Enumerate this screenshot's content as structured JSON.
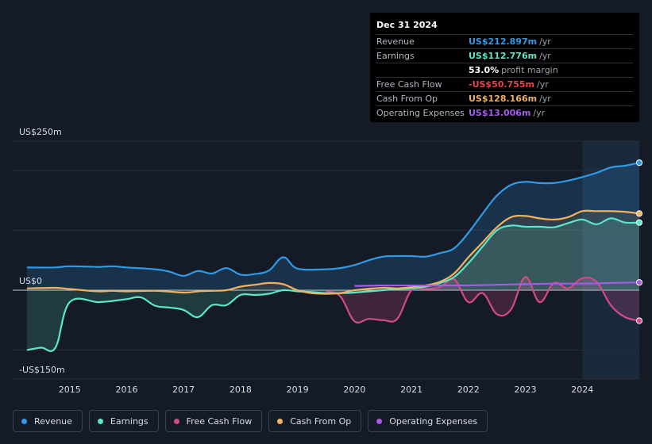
{
  "tooltip": {
    "date": "Dec 31 2024",
    "rows": [
      {
        "label": "Revenue",
        "value": "US$212.897m",
        "unit": "/yr",
        "color": "#2f9ae8"
      },
      {
        "label": "Earnings",
        "value": "US$112.776m",
        "unit": "/yr",
        "color": "#5ce6c8"
      },
      {
        "label": "",
        "value": "53.0%",
        "unit": "profit margin",
        "color": "#ffffff"
      },
      {
        "label": "Free Cash Flow",
        "value": "-US$50.755m",
        "unit": "/yr",
        "color": "#e8434b"
      },
      {
        "label": "Cash From Op",
        "value": "US$128.166m",
        "unit": "/yr",
        "color": "#f0b25f"
      },
      {
        "label": "Operating Expenses",
        "value": "US$13.006m",
        "unit": "/yr",
        "color": "#a35ce8"
      }
    ]
  },
  "legend": [
    {
      "label": "Revenue",
      "color": "#2f9ae8"
    },
    {
      "label": "Earnings",
      "color": "#5ce6c8"
    },
    {
      "label": "Free Cash Flow",
      "color": "#d14a8a"
    },
    {
      "label": "Cash From Op",
      "color": "#f0b25f"
    },
    {
      "label": "Operating Expenses",
      "color": "#a35ce8"
    }
  ],
  "chart_data": {
    "type": "line",
    "ylim": [
      -150,
      250
    ],
    "y_tick_labels": [
      "US$250m",
      "US$0",
      "-US$150m"
    ],
    "x_tick_labels": [
      "2015",
      "2016",
      "2017",
      "2018",
      "2019",
      "2020",
      "2021",
      "2022",
      "2023",
      "2024"
    ],
    "highlight_start": 2024.0,
    "series": [
      {
        "name": "Revenue",
        "color": "#2f9ae8",
        "x": [
          2014.25,
          2014.75,
          2015.0,
          2015.5,
          2015.75,
          2016.0,
          2016.5,
          2016.75,
          2017.0,
          2017.25,
          2017.5,
          2017.75,
          2018.0,
          2018.25,
          2018.5,
          2018.75,
          2019.0,
          2019.5,
          2019.75,
          2020.0,
          2020.25,
          2020.5,
          2020.75,
          2021.0,
          2021.25,
          2021.5,
          2021.75,
          2022.0,
          2022.25,
          2022.5,
          2022.75,
          2023.0,
          2023.25,
          2023.5,
          2023.75,
          2024.0,
          2024.25,
          2024.5,
          2024.75,
          2025.0
        ],
        "y": [
          38,
          38,
          40,
          39,
          40,
          38,
          35,
          31,
          24,
          32,
          28,
          37,
          26,
          27,
          33,
          55,
          36,
          35,
          37,
          42,
          50,
          56,
          57,
          57,
          56,
          62,
          70,
          96,
          128,
          158,
          176,
          181,
          179,
          179,
          183,
          189,
          196,
          205,
          208,
          213
        ]
      },
      {
        "name": "Earnings",
        "color": "#5ce6c8",
        "x": [
          2014.25,
          2014.5,
          2014.75,
          2015.0,
          2015.5,
          2015.75,
          2016.0,
          2016.25,
          2016.5,
          2016.75,
          2017.0,
          2017.25,
          2017.5,
          2017.75,
          2018.0,
          2018.25,
          2018.5,
          2018.75,
          2019.0,
          2019.25,
          2019.5,
          2019.75,
          2020.0,
          2020.5,
          2020.75,
          2021.0,
          2021.25,
          2021.5,
          2021.75,
          2022.0,
          2022.25,
          2022.5,
          2022.75,
          2023.0,
          2023.25,
          2023.5,
          2023.75,
          2024.0,
          2024.25,
          2024.5,
          2024.75,
          2025.0
        ],
        "y": [
          -100,
          -96,
          -96,
          -20,
          -20,
          -18,
          -15,
          -12,
          -26,
          -29,
          -33,
          -45,
          -25,
          -25,
          -8,
          -8,
          -6,
          0,
          -2,
          -3,
          -5,
          -5,
          -4,
          0,
          2,
          3,
          6,
          12,
          22,
          45,
          73,
          100,
          108,
          106,
          106,
          105,
          112,
          118,
          110,
          120,
          113,
          113
        ]
      },
      {
        "name": "Free Cash Flow",
        "color": "#d14a8a",
        "x": [
          2019.5,
          2019.75,
          2020.0,
          2020.25,
          2020.5,
          2020.75,
          2021.0,
          2021.25,
          2021.5,
          2021.75,
          2022.0,
          2022.25,
          2022.5,
          2022.75,
          2023.0,
          2023.25,
          2023.5,
          2023.75,
          2024.0,
          2024.25,
          2024.5,
          2024.75,
          2025.0
        ],
        "y": [
          -2,
          -10,
          -52,
          -48,
          -50,
          -48,
          0,
          2,
          5,
          18,
          -20,
          -5,
          -40,
          -32,
          22,
          -20,
          12,
          3,
          20,
          14,
          -25,
          -45,
          -51
        ]
      },
      {
        "name": "Cash From Op",
        "color": "#f0b25f",
        "x": [
          2014.25,
          2014.75,
          2015.0,
          2015.5,
          2015.75,
          2016.0,
          2016.5,
          2017.0,
          2017.25,
          2017.5,
          2017.75,
          2018.0,
          2018.25,
          2018.5,
          2018.75,
          2019.0,
          2019.25,
          2019.5,
          2019.75,
          2020.0,
          2020.5,
          2020.75,
          2021.0,
          2021.25,
          2021.5,
          2021.75,
          2022.0,
          2022.25,
          2022.5,
          2022.75,
          2023.0,
          2023.25,
          2023.5,
          2023.75,
          2024.0,
          2024.25,
          2024.5,
          2024.75,
          2025.0
        ],
        "y": [
          3,
          4,
          2,
          -2,
          -1,
          -2,
          -1,
          -4,
          -2,
          -1,
          0,
          6,
          9,
          12,
          10,
          0,
          -5,
          -6,
          -5,
          0,
          4,
          3,
          5,
          8,
          14,
          28,
          55,
          80,
          105,
          122,
          124,
          120,
          118,
          122,
          132,
          132,
          132,
          131,
          128
        ]
      },
      {
        "name": "Operating Expenses",
        "color": "#a35ce8",
        "x": [
          2020.0,
          2020.5,
          2021.0,
          2021.5,
          2022.0,
          2022.5,
          2023.0,
          2023.5,
          2024.0,
          2024.5,
          2025.0
        ],
        "y": [
          7,
          8,
          8,
          8,
          8,
          9,
          10,
          11,
          11,
          12,
          13
        ]
      }
    ]
  }
}
